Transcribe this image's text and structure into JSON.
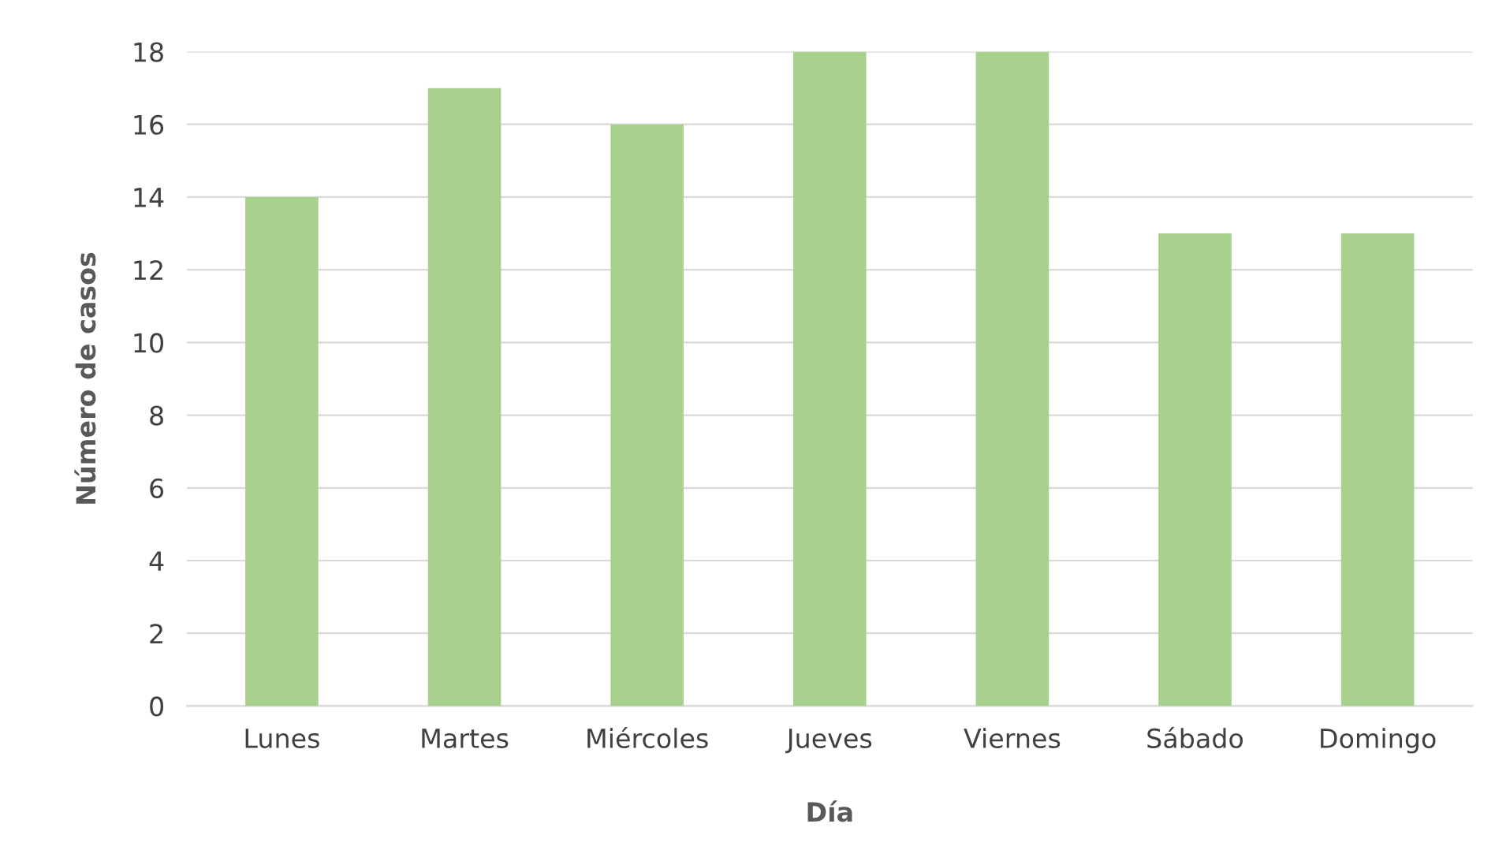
{
  "chart_data": {
    "type": "bar",
    "xlabel": "Día",
    "ylabel": "Número de casos",
    "categories": [
      "Lunes",
      "Martes",
      "Miércoles",
      "Jueves",
      "Viernes",
      "Sábado",
      "Domingo"
    ],
    "values": [
      14,
      17,
      16,
      18,
      18,
      13,
      13
    ],
    "color": "#a9d18e",
    "ylim": [
      0,
      18
    ],
    "yticks": [
      0,
      2,
      4,
      6,
      8,
      10,
      12,
      14,
      16,
      18
    ],
    "grid": "y",
    "legend": false
  }
}
